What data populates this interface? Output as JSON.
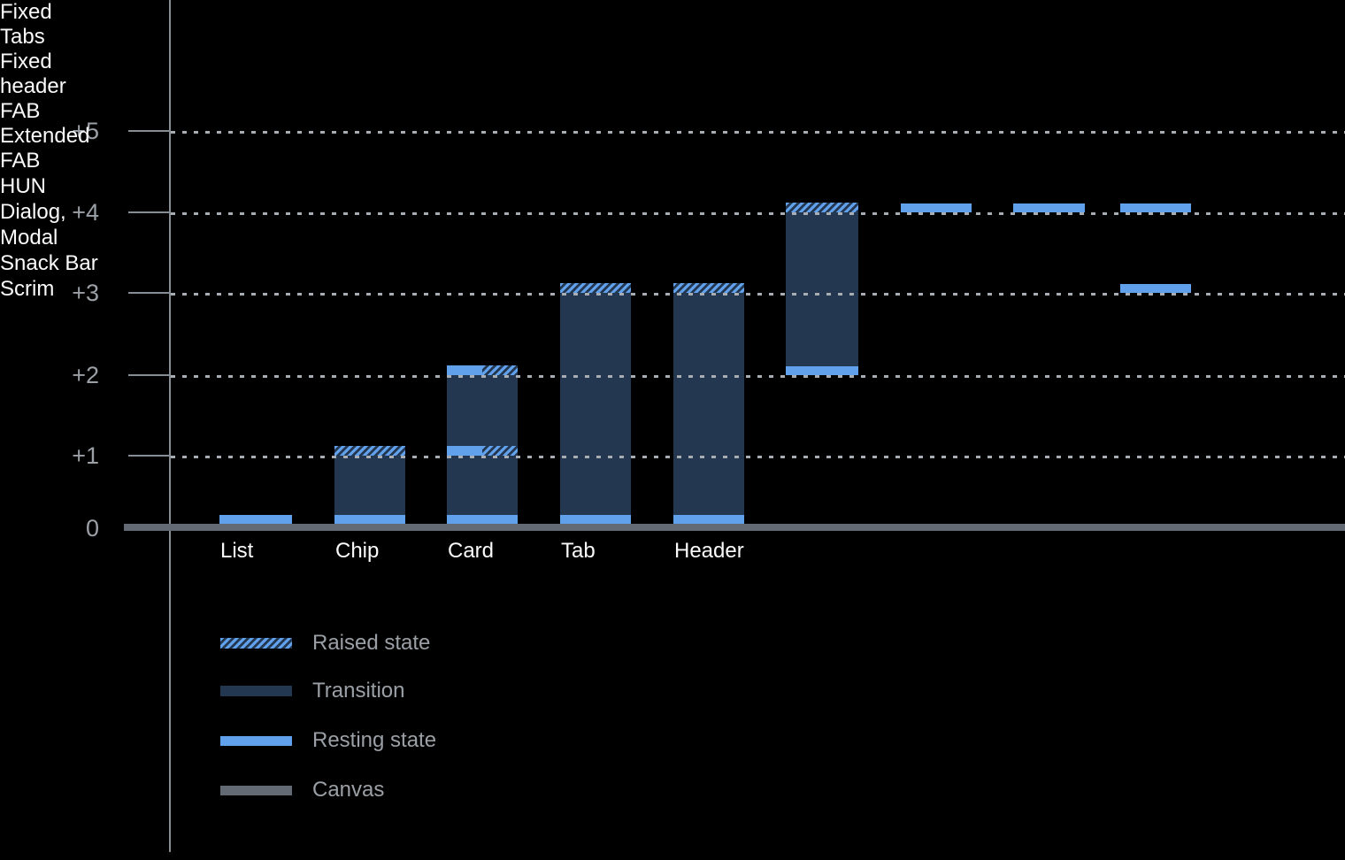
{
  "chart_data": {
    "type": "bar",
    "title": "",
    "xlabel": "",
    "ylabel": "",
    "ylim": [
      0,
      5.5
    ],
    "grid": "dotted-horizontal",
    "legend_position": "bottom-left",
    "yticks": [
      {
        "label": "+5",
        "value": 5
      },
      {
        "label": "+4",
        "value": 4
      },
      {
        "label": "+3",
        "value": 3
      },
      {
        "label": "+2",
        "value": 2
      },
      {
        "label": "+1",
        "value": 1
      },
      {
        "label": "0",
        "value": 0
      }
    ],
    "bars": [
      {
        "name": "list",
        "label": "List",
        "resting": 0,
        "raised": null,
        "transition": null
      },
      {
        "name": "chip",
        "label": "Chip",
        "resting": 0,
        "raised": 1,
        "transition": [
          0,
          1
        ]
      },
      {
        "name": "card",
        "label": "Card",
        "resting": 0,
        "raised": null,
        "transition": [
          0,
          2
        ],
        "split_bands": [
          1,
          2
        ]
      },
      {
        "name": "tab",
        "label": "Tab",
        "inner_label": [
          "Fixed",
          "Tabs"
        ],
        "resting": 0,
        "raised": 3,
        "transition": [
          0,
          3
        ]
      },
      {
        "name": "header",
        "label": "Header",
        "inner_label": [
          "Fixed",
          "header"
        ],
        "resting": 0,
        "raised": 3,
        "transition": [
          0,
          3
        ]
      },
      {
        "name": "fab",
        "inner_label": [
          "FAB"
        ],
        "below_label": [
          "Extended",
          "FAB"
        ],
        "resting": 2,
        "raised": 4,
        "transition": [
          2,
          4
        ]
      },
      {
        "name": "hun",
        "band_label": [
          "HUN"
        ],
        "resting": 4,
        "raised": null,
        "transition": null
      },
      {
        "name": "dialog-modal",
        "band_label": [
          "Dialog,",
          "Modal"
        ],
        "resting": 4,
        "raised": null,
        "transition": null
      },
      {
        "name": "snack-bar",
        "band_label": [
          "Snack Bar"
        ],
        "resting": 4,
        "raised": null,
        "transition": null
      },
      {
        "name": "scrim",
        "band_label": [
          "Scrim"
        ],
        "resting": 3,
        "raised": null,
        "transition": null
      }
    ],
    "legend": [
      {
        "name": "raised",
        "label": "Raised state"
      },
      {
        "name": "transition",
        "label": "Transition"
      },
      {
        "name": "resting",
        "label": "Resting state"
      },
      {
        "name": "canvas",
        "label": "Canvas"
      }
    ],
    "colors": {
      "background": "#000000",
      "resting_blue": "#61A1EC",
      "transition_navy": "#233750",
      "canvas_gray": "#646A73",
      "axis_gray": "#878D95",
      "gridline_gray": "#A8ADB3",
      "tick_label_gray": "#9AA0A6",
      "bar_label_white": "#FAFAFA"
    }
  }
}
